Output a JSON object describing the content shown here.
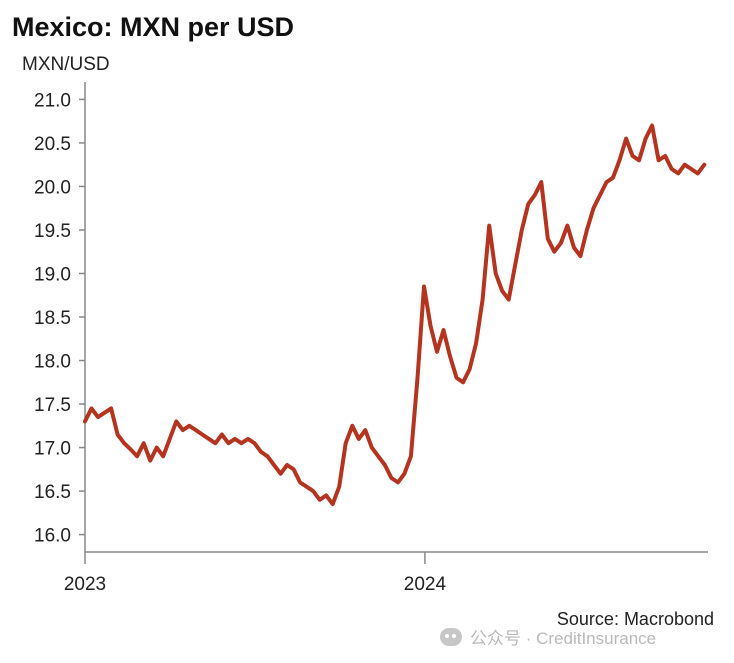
{
  "chart_data": {
    "type": "line",
    "title": "Mexico: MXN per USD",
    "ylabel": "MXN/USD",
    "xlabel": "",
    "ylim": [
      15.8,
      21.2
    ],
    "yticks": [
      16.0,
      16.5,
      17.0,
      17.5,
      18.0,
      18.5,
      19.0,
      19.5,
      20.0,
      20.5,
      21.0
    ],
    "ytick_labels": [
      "16.0",
      "16.5",
      "17.0",
      "17.5",
      "18.0",
      "18.5",
      "19.0",
      "19.5",
      "20.0",
      "20.5",
      "21.0"
    ],
    "xlim": [
      "2023-01-01",
      "2024-10-31"
    ],
    "xticks": [
      {
        "date": "2023-01-01",
        "label": "2023"
      },
      {
        "date": "2024-01-01",
        "label": "2024"
      }
    ],
    "source": "Source: Macrobond",
    "grid": false,
    "line_color": "#b5341f",
    "series": [
      {
        "x": [
          "2023-01-01",
          "2023-01-08",
          "2023-01-15",
          "2023-01-22",
          "2023-01-29",
          "2023-02-05",
          "2023-02-12",
          "2023-02-19",
          "2023-02-26",
          "2023-03-05",
          "2023-03-12",
          "2023-03-19",
          "2023-03-26",
          "2023-04-02",
          "2023-04-09",
          "2023-04-16",
          "2023-04-23",
          "2023-04-30",
          "2023-05-07",
          "2023-05-14",
          "2023-05-21",
          "2023-05-28",
          "2023-06-04",
          "2023-06-11",
          "2023-06-18",
          "2023-06-25",
          "2023-07-02",
          "2023-07-09",
          "2023-07-16",
          "2023-07-23",
          "2023-07-30",
          "2023-08-06",
          "2023-08-13",
          "2023-08-20",
          "2023-08-27",
          "2023-09-03",
          "2023-09-10",
          "2023-09-17",
          "2023-09-24",
          "2023-10-01",
          "2023-10-08",
          "2023-10-15",
          "2023-10-22",
          "2023-10-29",
          "2023-11-05",
          "2023-11-12",
          "2023-11-19",
          "2023-11-26",
          "2023-12-03",
          "2023-12-10",
          "2023-12-17",
          "2023-12-24",
          "2023-12-31",
          "2024-01-07",
          "2024-01-14",
          "2024-01-21",
          "2024-01-28",
          "2024-02-04",
          "2024-02-11",
          "2024-02-18",
          "2024-02-25",
          "2024-03-03",
          "2024-03-10",
          "2024-03-17",
          "2024-03-24",
          "2024-03-31",
          "2024-04-07",
          "2024-04-14",
          "2024-04-21",
          "2024-04-28",
          "2024-05-05",
          "2024-05-12",
          "2024-05-19",
          "2024-05-26",
          "2024-06-02",
          "2024-06-09",
          "2024-06-16",
          "2024-06-23",
          "2024-06-30",
          "2024-07-07",
          "2024-07-14",
          "2024-07-21",
          "2024-07-28",
          "2024-08-04",
          "2024-08-11",
          "2024-08-18",
          "2024-08-25",
          "2024-09-01",
          "2024-09-08",
          "2024-09-15",
          "2024-09-22",
          "2024-09-29",
          "2024-10-06",
          "2024-10-13",
          "2024-10-20",
          "2024-10-27"
        ],
        "values": [
          17.3,
          17.45,
          17.35,
          17.4,
          17.45,
          17.15,
          17.05,
          16.98,
          16.9,
          17.05,
          16.85,
          17.0,
          16.9,
          17.1,
          17.3,
          17.2,
          17.25,
          17.2,
          17.15,
          17.1,
          17.05,
          17.15,
          17.05,
          17.1,
          17.05,
          17.1,
          17.05,
          16.95,
          16.9,
          16.8,
          16.7,
          16.8,
          16.75,
          16.6,
          16.55,
          16.5,
          16.4,
          16.45,
          16.35,
          16.55,
          17.05,
          17.25,
          17.1,
          17.2,
          17.0,
          16.9,
          16.8,
          16.65,
          16.6,
          16.7,
          16.9,
          17.8,
          18.85,
          18.4,
          18.1,
          18.35,
          18.05,
          17.8,
          17.75,
          17.9,
          18.2,
          18.7,
          19.55,
          19.0,
          18.8,
          18.7,
          19.1,
          19.5,
          19.8,
          19.9,
          20.05,
          19.4,
          19.25,
          19.35,
          19.55,
          19.3,
          19.2,
          19.5,
          19.75,
          19.9,
          20.05,
          20.1,
          20.3,
          20.55,
          20.35,
          20.3,
          20.55,
          20.7,
          20.3,
          20.35,
          20.2,
          20.15,
          20.25,
          20.2,
          20.15,
          20.25
        ]
      }
    ]
  },
  "watermark": {
    "text": "公众号 · CreditInsurance"
  }
}
